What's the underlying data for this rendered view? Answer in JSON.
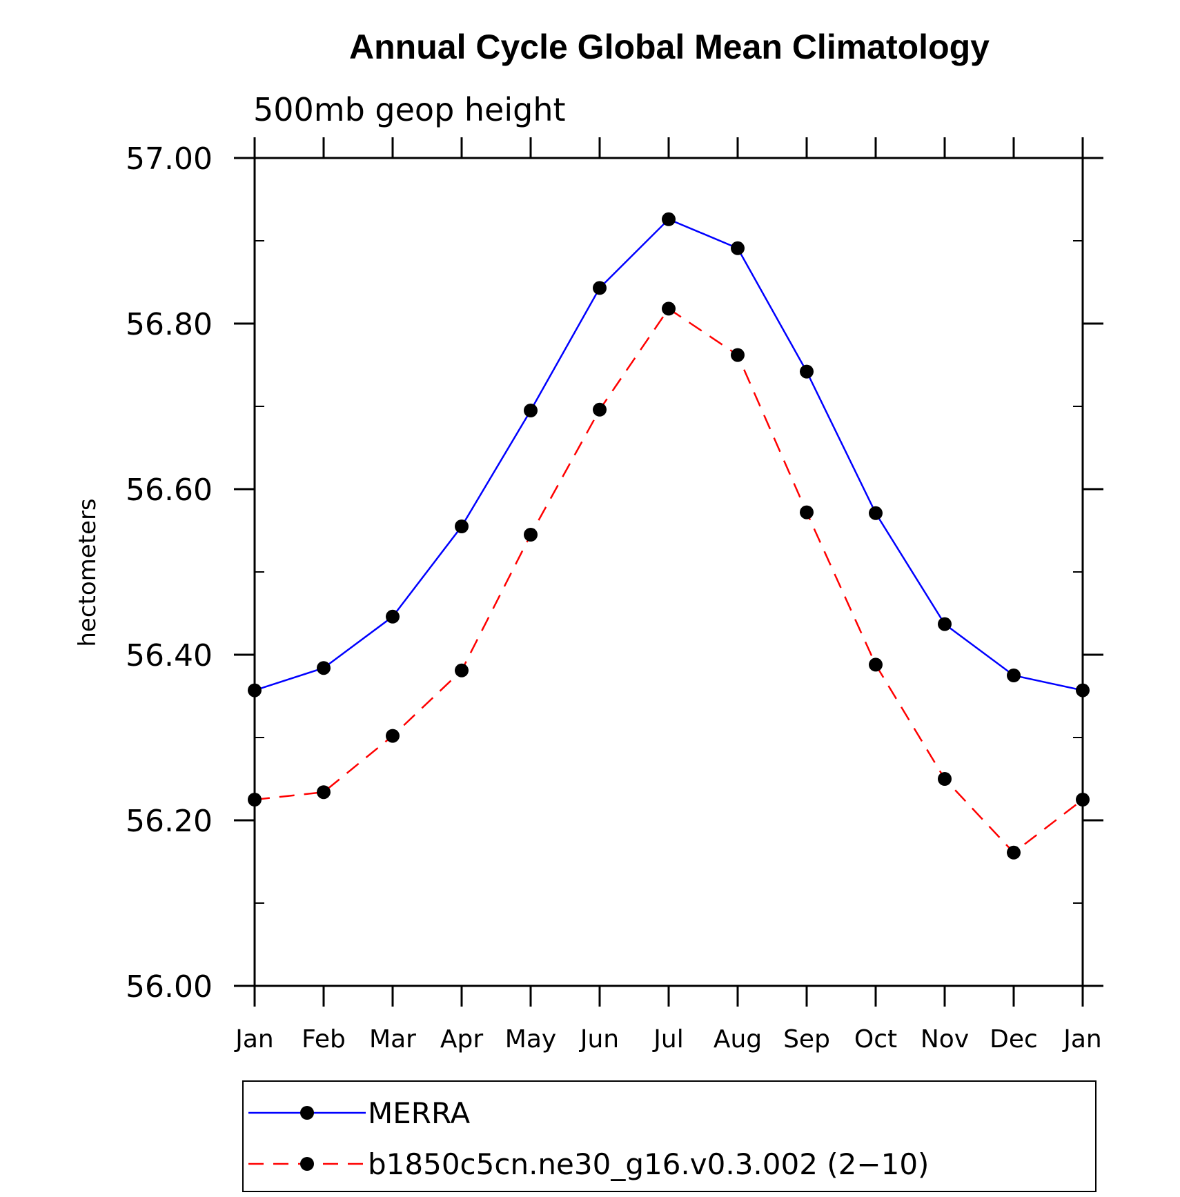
{
  "chart_data": {
    "type": "line",
    "title": "Annual Cycle Global Mean Climatology",
    "subtitle": "500mb geop height",
    "ylabel": "hectometers",
    "xlabel": "",
    "categories": [
      "Jan",
      "Feb",
      "Mar",
      "Apr",
      "May",
      "Jun",
      "Jul",
      "Aug",
      "Sep",
      "Oct",
      "Nov",
      "Dec",
      "Jan"
    ],
    "ylim": [
      56.0,
      57.0
    ],
    "yticks": [
      "56.00",
      "56.20",
      "56.40",
      "56.60",
      "56.80",
      "57.00"
    ],
    "grid": false,
    "legend_position": "bottom",
    "series": [
      {
        "name": "MERRA",
        "color": "#0000ff",
        "dash": "solid",
        "values": [
          56.357,
          56.384,
          56.446,
          56.555,
          56.695,
          56.843,
          56.926,
          56.891,
          56.742,
          56.571,
          56.437,
          56.375,
          56.357
        ]
      },
      {
        "name": "b1850c5cn.ne30_g16.v0.3.002 (2−10)",
        "color": "#ff0000",
        "dash": "dashed",
        "values": [
          56.225,
          56.234,
          56.302,
          56.381,
          56.545,
          56.696,
          56.818,
          56.762,
          56.572,
          56.388,
          56.25,
          56.161,
          56.225
        ]
      }
    ]
  }
}
